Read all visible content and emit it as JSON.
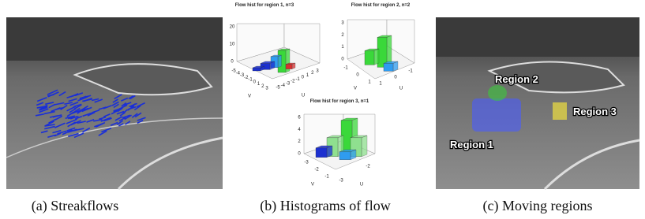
{
  "panels": [
    {
      "caption": "(a) Streakflows"
    },
    {
      "caption": "(b) Histograms of flow",
      "histograms": [
        {
          "title": "Flow hist for region 1, n=3",
          "z_ticks": [
            "20",
            "10",
            "0"
          ],
          "v_ticks": [
            "-5",
            "-4",
            "-3",
            "-2",
            "-1",
            "0",
            "1",
            "2",
            "3"
          ],
          "u_ticks": [
            "-5",
            "-4",
            "-3",
            "-2",
            "-1",
            "0",
            "1",
            "2",
            "3"
          ],
          "v_label": "V",
          "u_label": "U"
        },
        {
          "title": "Flow hist for region 2, n=2",
          "z_ticks": [
            "3",
            "2",
            "1",
            "0"
          ],
          "v_ticks": [
            "-1",
            "0",
            "1"
          ],
          "u_ticks": [
            "1",
            "0",
            "-1"
          ],
          "v_label": "V",
          "u_label": "U"
        },
        {
          "title": "Flow hist for region 3, n=1",
          "z_ticks": [
            "6",
            "4",
            "2",
            "0"
          ],
          "v_ticks": [
            "-3",
            "-2",
            "-1"
          ],
          "u_ticks": [
            "-3",
            "-2"
          ],
          "v_label": "V",
          "u_label": "U"
        }
      ]
    },
    {
      "caption": "(c) Moving regions",
      "regions": [
        "Region 1",
        "Region 2",
        "Region 3"
      ]
    }
  ]
}
